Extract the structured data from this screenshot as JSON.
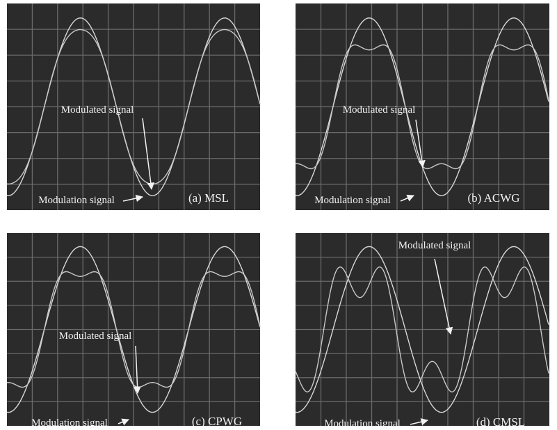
{
  "panels": [
    {
      "caption": "(a) MSL",
      "modulated_label": "Modulated signal",
      "modulation_label": "Modulation signal"
    },
    {
      "caption": "(b) ACWG",
      "modulated_label": "Modulated signal",
      "modulation_label": "Modulation signal"
    },
    {
      "caption": "(c) CPWG",
      "modulated_label": "Modulated signal",
      "modulation_label": "Modulation signal"
    },
    {
      "caption": "(d) CMSL",
      "modulated_label": "Modulated signal",
      "modulation_label": "Modulation signal"
    }
  ]
}
